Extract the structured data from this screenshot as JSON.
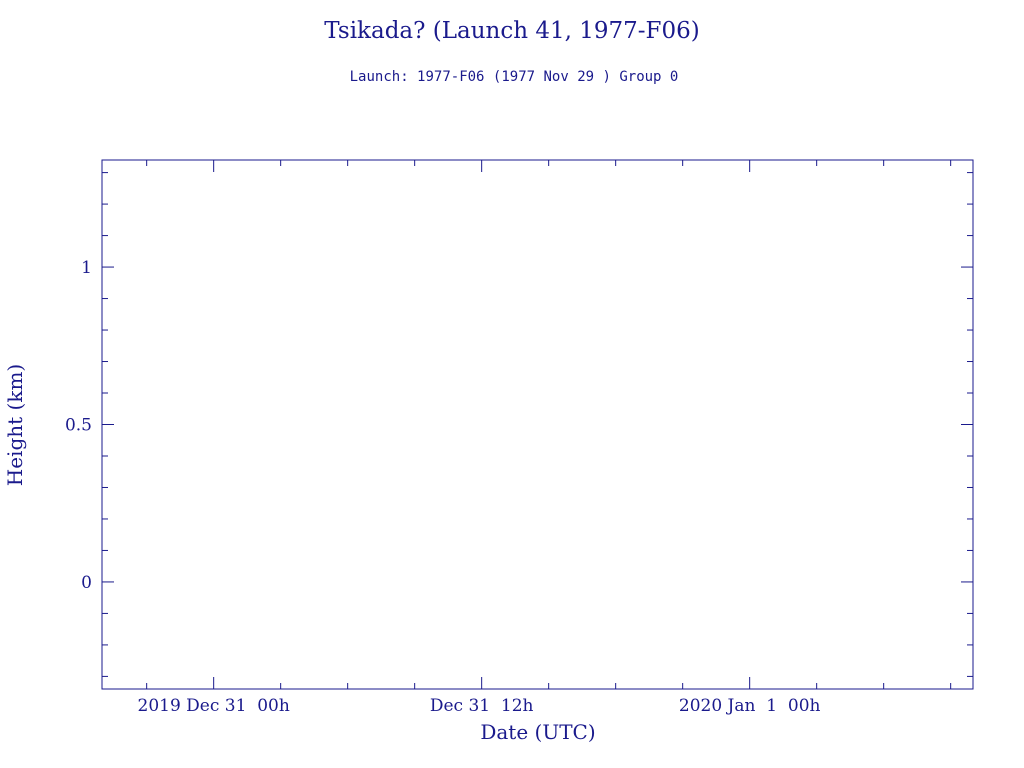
{
  "chart_data": {
    "type": "line",
    "title": "Tsikada? (Launch 41, 1977-F06)",
    "subtitle": "Launch: 1977-F06  (1977 Nov 29 )  Group 0",
    "xlabel": "Date (UTC)",
    "ylabel": "Height (km)",
    "xlim": [
      "2019-12-30T19:00",
      "2020-01-01T10:00"
    ],
    "ylim": [
      -0.34,
      1.34
    ],
    "x_major_ticks": [
      {
        "value": "2019-12-31T00:00",
        "label": "2019 Dec 31  00h"
      },
      {
        "value": "2019-12-31T12:00",
        "label": "Dec 31  12h"
      },
      {
        "value": "2020-01-01T00:00",
        "label": "2020 Jan  1  00h"
      }
    ],
    "x_minor_tick_hours": 3,
    "y_major_ticks": [
      {
        "value": 0,
        "label": "0"
      },
      {
        "value": 0.5,
        "label": "0.5"
      },
      {
        "value": 1,
        "label": "1"
      }
    ],
    "y_minor_tick_step": 0.1,
    "grid": false,
    "series": [],
    "colors": {
      "axis": "#1a1a8c",
      "text": "#1a1a8c",
      "background": "#ffffff"
    }
  }
}
